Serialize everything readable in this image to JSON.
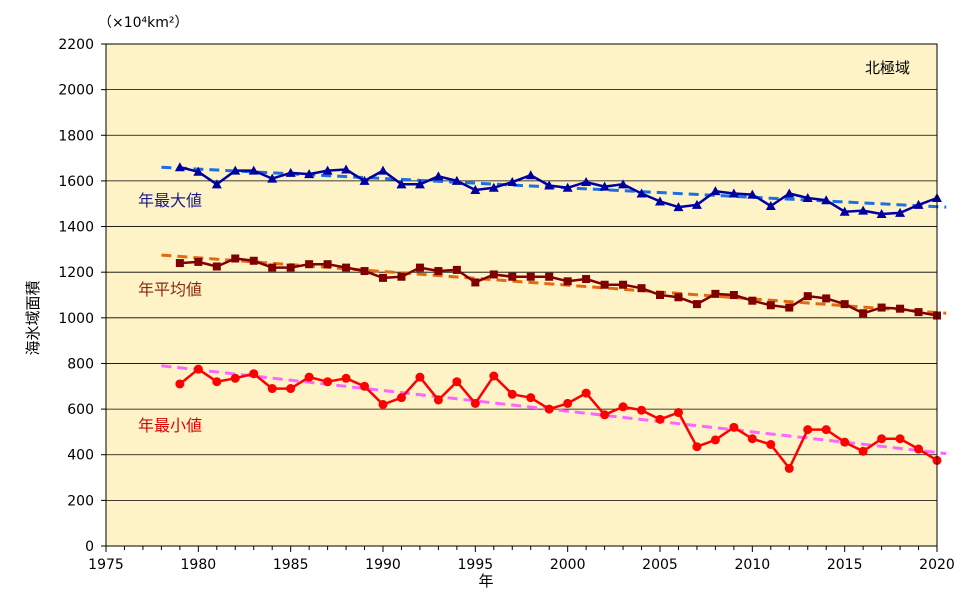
{
  "chart_data": {
    "type": "line",
    "unit_label": "（×10⁴km²）",
    "region_label": "北極域",
    "xlabel": "年",
    "ylabel": "海氷域面積",
    "xlim": [
      1975,
      2020
    ],
    "ylim": [
      0,
      2200
    ],
    "xticks": [
      1975,
      1980,
      1985,
      1990,
      1995,
      2000,
      2005,
      2010,
      2015,
      2020
    ],
    "yticks": [
      0,
      200,
      400,
      600,
      800,
      1000,
      1200,
      1400,
      1600,
      1800,
      2000,
      2200
    ],
    "grid": "horizontal",
    "plot_background": "#fdf3c7",
    "x": [
      1979,
      1980,
      1981,
      1982,
      1983,
      1984,
      1985,
      1986,
      1987,
      1988,
      1989,
      1990,
      1991,
      1992,
      1993,
      1994,
      1995,
      1996,
      1997,
      1998,
      1999,
      2000,
      2001,
      2002,
      2003,
      2004,
      2005,
      2006,
      2007,
      2008,
      2009,
      2010,
      2011,
      2012,
      2013,
      2014,
      2015,
      2016,
      2017,
      2018,
      2019,
      2020
    ],
    "series": [
      {
        "name": "年最大値",
        "color": "#0000a0",
        "label_color": "#1a1a8c",
        "marker": "triangle",
        "values": [
          1660,
          1640,
          1585,
          1645,
          1645,
          1610,
          1635,
          1630,
          1645,
          1650,
          1600,
          1645,
          1585,
          1585,
          1620,
          1600,
          1560,
          1570,
          1595,
          1625,
          1580,
          1570,
          1595,
          1575,
          1585,
          1545,
          1510,
          1485,
          1495,
          1555,
          1545,
          1540,
          1490,
          1545,
          1525,
          1515,
          1465,
          1470,
          1455,
          1460,
          1495,
          1525
        ],
        "trend": {
          "color": "#1e6fe0",
          "start": [
            1978,
            1660
          ],
          "end": [
            2020.5,
            1485
          ]
        }
      },
      {
        "name": "年平均値",
        "color": "#800000",
        "label_color": "#8b2a10",
        "marker": "square",
        "values": [
          1240,
          1245,
          1225,
          1260,
          1250,
          1220,
          1220,
          1235,
          1235,
          1220,
          1205,
          1175,
          1180,
          1220,
          1205,
          1210,
          1155,
          1190,
          1180,
          1180,
          1180,
          1160,
          1170,
          1145,
          1145,
          1130,
          1100,
          1090,
          1060,
          1105,
          1100,
          1075,
          1055,
          1045,
          1095,
          1085,
          1060,
          1020,
          1045,
          1040,
          1025,
          1010
        ],
        "trend": {
          "color": "#e46a10",
          "start": [
            1978,
            1275
          ],
          "end": [
            2020.5,
            1020
          ]
        }
      },
      {
        "name": "年最小値",
        "color": "#ff0000",
        "label_color": "#e00000",
        "marker": "circle",
        "values": [
          710,
          775,
          720,
          735,
          755,
          690,
          690,
          740,
          720,
          735,
          700,
          620,
          650,
          740,
          640,
          720,
          625,
          745,
          665,
          650,
          600,
          625,
          670,
          575,
          610,
          595,
          555,
          585,
          435,
          465,
          520,
          470,
          445,
          340,
          510,
          510,
          455,
          415,
          470,
          470,
          425,
          375
        ],
        "trend": {
          "color": "#ff66ff",
          "start": [
            1978,
            790
          ],
          "end": [
            2020.5,
            405
          ]
        }
      }
    ]
  }
}
